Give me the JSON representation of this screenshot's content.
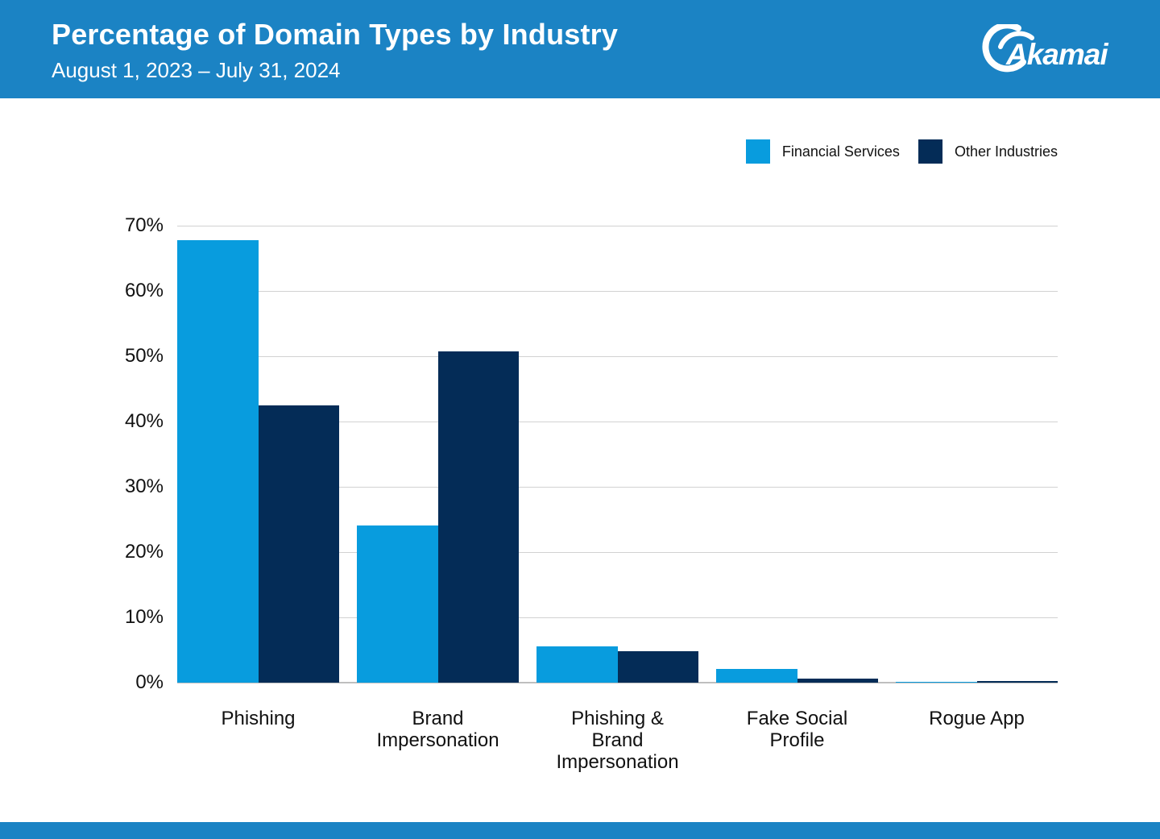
{
  "header": {
    "title": "Percentage of Domain Types by Industry",
    "subtitle": "August 1, 2023 – July 31, 2024",
    "logo_text": "Akamai",
    "background_color": "#1b83c4"
  },
  "legend": [
    {
      "label": "Financial Services",
      "color": "#089cde"
    },
    {
      "label": "Other Industries",
      "color": "#042c57"
    }
  ],
  "chart_data": {
    "type": "bar",
    "title": "Percentage of Domain Types by Industry",
    "subtitle": "August 1, 2023 – July 31, 2024",
    "categories": [
      "Phishing",
      "Brand Impersonation",
      "Phishing & Brand Impersonation",
      "Fake Social Profile",
      "Rogue App"
    ],
    "series": [
      {
        "name": "Financial Services",
        "color": "#089cde",
        "values": [
          67.8,
          24.1,
          5.6,
          2.1,
          0.1
        ]
      },
      {
        "name": "Other Industries",
        "color": "#042c57",
        "values": [
          42.5,
          50.7,
          4.8,
          0.6,
          0.3
        ]
      }
    ],
    "xlabel": "",
    "ylabel": "",
    "ylim": [
      0,
      70
    ],
    "y_ticks": [
      "70%",
      "60%",
      "50%",
      "40%",
      "30%",
      "20%",
      "10%",
      "0%"
    ],
    "grid": true,
    "legend_position": "top-right",
    "gridline_color": "#d2d2d2",
    "baseline_color": "#bfbfbf"
  }
}
